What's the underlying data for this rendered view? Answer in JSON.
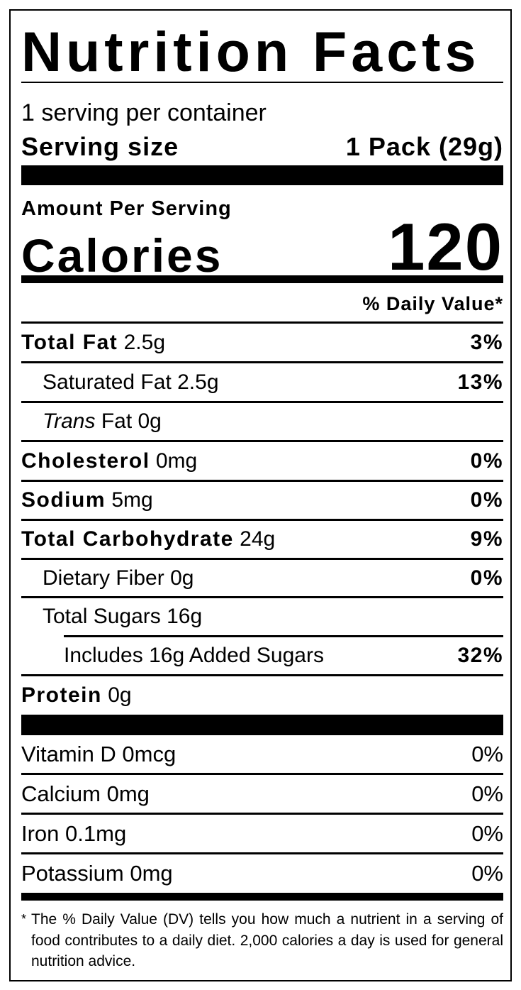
{
  "title": "Nutrition Facts",
  "servings_per_container": "1 serving per container",
  "serving_size": {
    "label": "Serving size",
    "value": "1 Pack (29g)"
  },
  "amount_per_serving": "Amount Per Serving",
  "calories": {
    "label": "Calories",
    "value": "120"
  },
  "daily_value_header": "% Daily Value*",
  "nutrients": [
    {
      "name": "Total Fat",
      "amount": "2.5g",
      "dv": "3%"
    },
    {
      "name": "Saturated Fat",
      "amount": "2.5g",
      "dv": "13%"
    },
    {
      "name": "Trans",
      "amount": "Fat 0g",
      "dv": ""
    },
    {
      "name": "Cholesterol",
      "amount": "0mg",
      "dv": "0%"
    },
    {
      "name": "Sodium",
      "amount": "5mg",
      "dv": "0%"
    },
    {
      "name": "Total Carbohydrate",
      "amount": "24g",
      "dv": "9%"
    },
    {
      "name": "Dietary Fiber",
      "amount": "0g",
      "dv": "0%"
    },
    {
      "name": "Total Sugars",
      "amount": "16g",
      "dv": ""
    },
    {
      "name": "Includes 16g Added Sugars",
      "amount": "",
      "dv": "32%"
    },
    {
      "name": "Protein",
      "amount": "0g",
      "dv": ""
    }
  ],
  "vitamins": [
    {
      "label": "Vitamin D 0mcg",
      "dv": "0%"
    },
    {
      "label": "Calcium 0mg",
      "dv": "0%"
    },
    {
      "label": "Iron 0.1mg",
      "dv": "0%"
    },
    {
      "label": "Potassium 0mg",
      "dv": "0%"
    }
  ],
  "footnote": {
    "star": "*",
    "text": "The % Daily Value (DV) tells you how much a nutrient in a serving of food contributes to a daily diet. 2,000 calories a day is used for general nutrition advice."
  }
}
